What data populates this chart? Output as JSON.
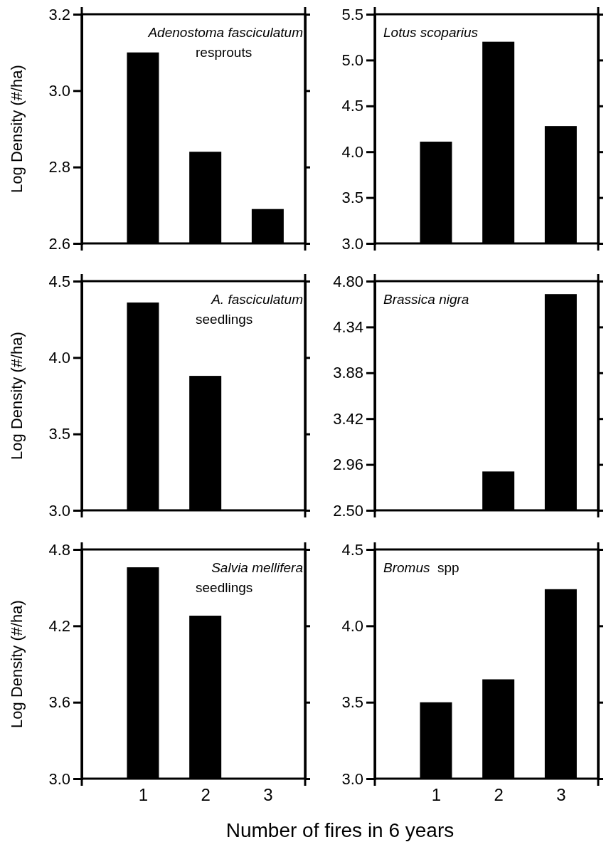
{
  "chart_data": [
    {
      "type": "bar",
      "title": "Adenostoma fasciculatum",
      "subtitle": "resprouts",
      "ylabel": "Log Density (#/ha)",
      "categories": [
        "1",
        "2",
        "3"
      ],
      "values": [
        3.1,
        2.84,
        2.69
      ],
      "color": "#000000",
      "ylim": [
        2.6,
        3.2
      ],
      "yticks": [
        {
          "value": 2.6,
          "label": "2.6"
        },
        {
          "value": 2.8,
          "label": "2.8"
        },
        {
          "value": 3.0,
          "label": "3.0"
        },
        {
          "value": 3.2,
          "label": "3.2"
        }
      ],
      "tick_labels": "y"
    },
    {
      "type": "bar",
      "title": "Lotus scoparius",
      "categories": [
        "1",
        "2",
        "3"
      ],
      "values": [
        4.11,
        5.2,
        4.28
      ],
      "color": "#000000",
      "ylim": [
        3.0,
        5.5
      ],
      "yticks": [
        {
          "value": 3.0,
          "label": "3.0"
        },
        {
          "value": 3.5,
          "label": "3.5"
        },
        {
          "value": 4.0,
          "label": "4.0"
        },
        {
          "value": 4.5,
          "label": "4.5"
        },
        {
          "value": 5.0,
          "label": "5.0"
        },
        {
          "value": 5.5,
          "label": "5.5"
        }
      ],
      "tick_labels": "y"
    },
    {
      "type": "bar",
      "title": "A. fasciculatum",
      "subtitle": "seedlings",
      "ylabel": "Log Density (#/ha)",
      "categories": [
        "1",
        "2",
        "3"
      ],
      "values": [
        4.36,
        3.88,
        null
      ],
      "color": "#000000",
      "ylim": [
        3.0,
        4.5
      ],
      "yticks": [
        {
          "value": 3.0,
          "label": "3.0"
        },
        {
          "value": 3.5,
          "label": "3.5"
        },
        {
          "value": 4.0,
          "label": "4.0"
        },
        {
          "value": 4.5,
          "label": "4.5"
        }
      ],
      "tick_labels": "y"
    },
    {
      "type": "bar",
      "title": "Brassica nigra",
      "categories": [
        "1",
        "2",
        "3"
      ],
      "values": [
        null,
        2.89,
        4.67
      ],
      "color": "#000000",
      "ylim": [
        2.5,
        4.8
      ],
      "yticks": [
        {
          "value": 2.5,
          "label": "2.50"
        },
        2.96,
        3.42,
        3.88,
        4.34,
        {
          "value": 4.8,
          "label": "4.80"
        }
      ],
      "tick_labels": "y"
    },
    {
      "type": "bar",
      "title": "Salvia mellifera",
      "subtitle": "seedlings",
      "ylabel": "Log Density (#/ha)",
      "xlabel": "Number of fires in 6 years",
      "categories": [
        "1",
        "2",
        "3"
      ],
      "values": [
        4.66,
        4.28,
        null
      ],
      "color": "#000000",
      "ylim": [
        3.0,
        4.8
      ],
      "yticks": [
        {
          "value": 3.0,
          "label": "3.0"
        },
        3.6,
        4.2,
        4.8
      ]
    },
    {
      "type": "bar",
      "title": "Bromus",
      "subtitle": "spp",
      "categories": [
        "1",
        "2",
        "3"
      ],
      "values": [
        3.5,
        3.65,
        4.24
      ],
      "color": "#000000",
      "ylim": [
        3.0,
        4.5
      ],
      "yticks": [
        {
          "value": 3.0,
          "label": "3.0"
        },
        3.5,
        {
          "value": 4.0,
          "label": "4.0"
        },
        4.5
      ]
    }
  ]
}
